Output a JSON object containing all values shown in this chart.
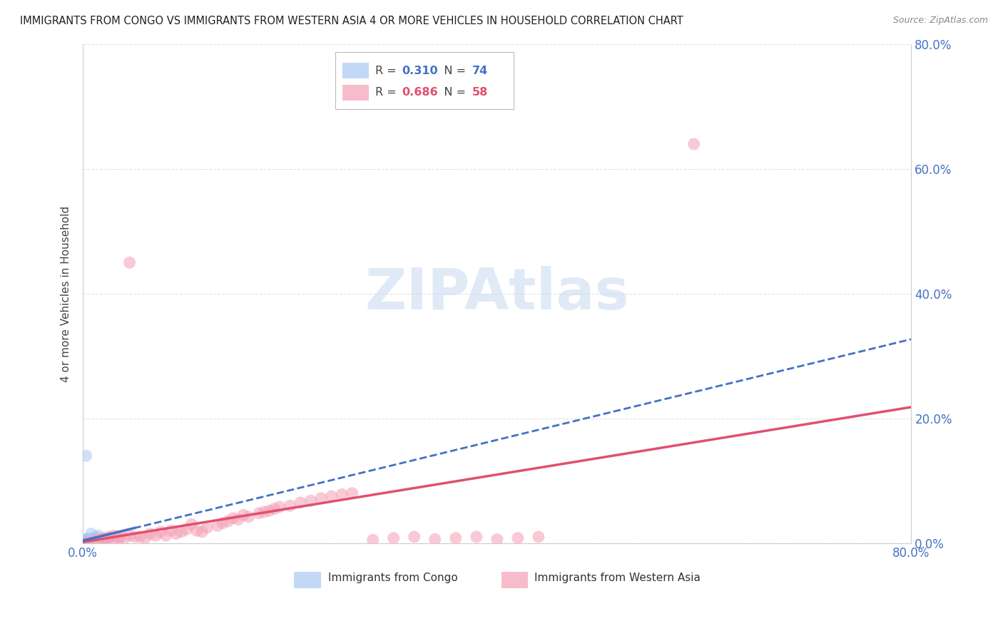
{
  "title": "IMMIGRANTS FROM CONGO VS IMMIGRANTS FROM WESTERN ASIA 4 OR MORE VEHICLES IN HOUSEHOLD CORRELATION CHART",
  "source": "Source: ZipAtlas.com",
  "ylabel": "4 or more Vehicles in Household",
  "congo_R": 0.31,
  "congo_N": 74,
  "western_asia_R": 0.686,
  "western_asia_N": 58,
  "congo_color": "#aac8f5",
  "western_asia_color": "#f5a0b5",
  "congo_line_color": "#4472c4",
  "western_asia_line_color": "#e05070",
  "tick_color": "#4472c4",
  "grid_color": "#dddddd",
  "watermark_color": "#ccdcf0",
  "xlim": [
    0.0,
    0.8
  ],
  "ylim": [
    0.0,
    0.8
  ],
  "ytick_vals": [
    0.0,
    0.2,
    0.4,
    0.6,
    0.8
  ],
  "ytick_labels_right": [
    "0.0%",
    "20.0%",
    "40.0%",
    "60.0%",
    "80.0%"
  ],
  "congo_x": [
    0.002,
    0.003,
    0.001,
    0.004,
    0.002,
    0.003,
    0.005,
    0.002,
    0.001,
    0.004,
    0.003,
    0.002,
    0.004,
    0.003,
    0.002,
    0.005,
    0.003,
    0.004,
    0.002,
    0.001,
    0.003,
    0.002,
    0.004,
    0.003,
    0.002,
    0.004,
    0.003,
    0.005,
    0.003,
    0.002,
    0.004,
    0.003,
    0.004,
    0.003,
    0.002,
    0.003,
    0.002,
    0.004,
    0.003,
    0.002,
    0.005,
    0.003,
    0.002,
    0.003,
    0.002,
    0.003,
    0.004,
    0.003,
    0.002,
    0.003,
    0.004,
    0.003,
    0.002,
    0.003,
    0.004,
    0.005,
    0.003,
    0.002,
    0.003,
    0.004,
    0.01,
    0.012,
    0.015,
    0.02,
    0.008,
    0.004,
    0.003,
    0.002,
    0.003,
    0.004,
    0.005,
    0.003,
    0.002,
    0.003
  ],
  "congo_y": [
    0.005,
    0.003,
    0.002,
    0.007,
    0.004,
    0.003,
    0.006,
    0.003,
    0.002,
    0.005,
    0.003,
    0.002,
    0.004,
    0.003,
    0.002,
    0.005,
    0.003,
    0.004,
    0.002,
    0.001,
    0.003,
    0.002,
    0.004,
    0.003,
    0.002,
    0.004,
    0.003,
    0.005,
    0.003,
    0.002,
    0.004,
    0.003,
    0.004,
    0.003,
    0.002,
    0.003,
    0.002,
    0.004,
    0.003,
    0.002,
    0.005,
    0.003,
    0.002,
    0.003,
    0.002,
    0.003,
    0.004,
    0.003,
    0.002,
    0.003,
    0.004,
    0.003,
    0.002,
    0.003,
    0.004,
    0.005,
    0.003,
    0.002,
    0.003,
    0.004,
    0.008,
    0.01,
    0.012,
    0.006,
    0.015,
    0.004,
    0.003,
    0.002,
    0.003,
    0.004,
    0.005,
    0.003,
    0.002,
    0.14
  ],
  "western_asia_x": [
    0.005,
    0.01,
    0.02,
    0.03,
    0.015,
    0.025,
    0.035,
    0.045,
    0.05,
    0.06,
    0.07,
    0.055,
    0.065,
    0.08,
    0.09,
    0.075,
    0.085,
    0.095,
    0.1,
    0.11,
    0.115,
    0.12,
    0.105,
    0.13,
    0.14,
    0.135,
    0.15,
    0.145,
    0.16,
    0.155,
    0.17,
    0.175,
    0.18,
    0.185,
    0.19,
    0.2,
    0.21,
    0.22,
    0.23,
    0.24,
    0.25,
    0.26,
    0.28,
    0.3,
    0.32,
    0.34,
    0.36,
    0.38,
    0.4,
    0.42,
    0.44,
    0.03,
    0.025,
    0.035,
    0.02,
    0.04,
    0.045,
    0.59
  ],
  "western_asia_y": [
    0.002,
    0.004,
    0.008,
    0.005,
    0.006,
    0.01,
    0.008,
    0.012,
    0.01,
    0.008,
    0.012,
    0.01,
    0.015,
    0.012,
    0.015,
    0.018,
    0.02,
    0.018,
    0.022,
    0.02,
    0.018,
    0.025,
    0.03,
    0.028,
    0.035,
    0.032,
    0.038,
    0.04,
    0.042,
    0.045,
    0.048,
    0.05,
    0.052,
    0.055,
    0.058,
    0.06,
    0.065,
    0.068,
    0.072,
    0.075,
    0.078,
    0.08,
    0.005,
    0.008,
    0.01,
    0.006,
    0.008,
    0.01,
    0.006,
    0.008,
    0.01,
    0.012,
    0.008,
    0.01,
    0.006,
    0.008,
    0.45,
    0.64
  ]
}
